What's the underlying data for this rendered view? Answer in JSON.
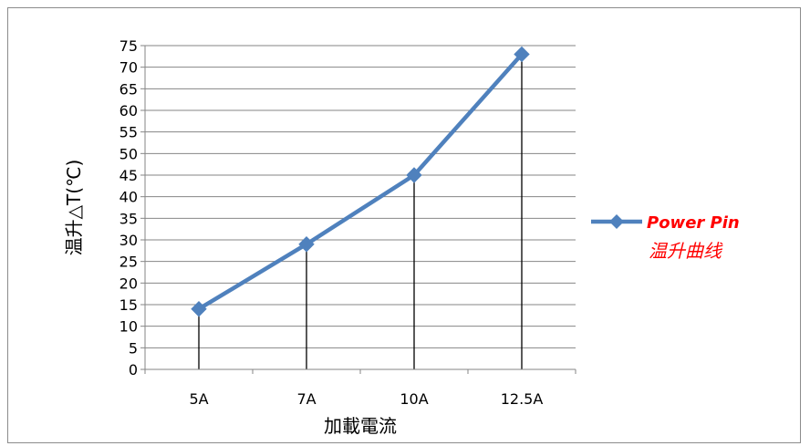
{
  "chart_data": {
    "type": "line",
    "categories": [
      "5A",
      "7A",
      "10A",
      "12.5A"
    ],
    "series": [
      {
        "name": "Power Pin 温升曲线",
        "name_lines": [
          "Power Pin",
          "温升曲线"
        ],
        "values": [
          14,
          29,
          45,
          73
        ]
      }
    ],
    "xlabel": "加載電流",
    "ylabel": "温升△T(℃)",
    "ylim": [
      0,
      75
    ],
    "yticks": [
      0,
      5,
      10,
      15,
      20,
      25,
      30,
      35,
      40,
      45,
      50,
      55,
      60,
      65,
      70,
      75
    ],
    "grid": true,
    "drop_lines": true,
    "marker": "diamond",
    "legend_position": "right",
    "series_color": "#4f81bd",
    "legend_text_color": "#ff0000"
  }
}
